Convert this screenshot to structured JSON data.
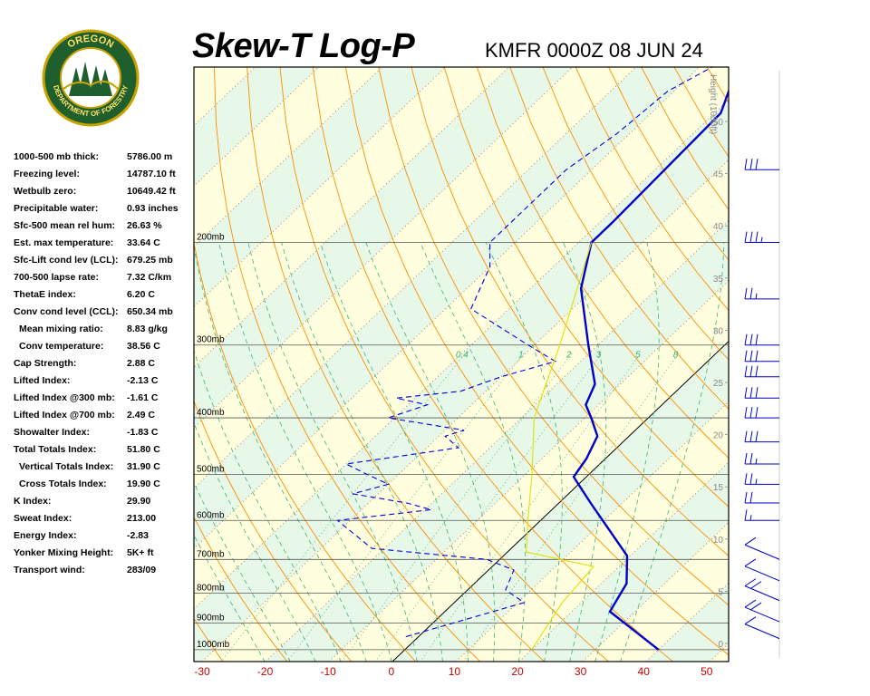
{
  "header": {
    "title": "Skew-T Log-P",
    "station_time": "KMFR 0000Z 08 JUN 24",
    "logo_top_text": "OREGON",
    "logo_bottom_text": "DEPARTMENT OF FORESTRY"
  },
  "indices": [
    {
      "label": "1000-500 mb thick:",
      "value": "5786.00 m",
      "indent": false
    },
    {
      "label": "Freezing level:",
      "value": "14787.10 ft",
      "indent": false
    },
    {
      "label": "Wetbulb zero:",
      "value": "10649.42 ft",
      "indent": false
    },
    {
      "label": "Precipitable water:",
      "value": "0.93 inches",
      "indent": false
    },
    {
      "label": "Sfc-500 mean rel hum:",
      "value": "26.63 %",
      "indent": false
    },
    {
      "label": "Est. max temperature:",
      "value": "33.64 C",
      "indent": false
    },
    {
      "label": "Sfc-Lift cond lev (LCL):",
      "value": "679.25 mb",
      "indent": false
    },
    {
      "label": "700-500 lapse rate:",
      "value": "7.32 C/km",
      "indent": false
    },
    {
      "label": "ThetaE index:",
      "value": "6.20 C",
      "indent": false
    },
    {
      "label": "Conv cond level (CCL):",
      "value": "650.34 mb",
      "indent": false
    },
    {
      "label": "Mean mixing ratio:",
      "value": "8.83 g/kg",
      "indent": true
    },
    {
      "label": "Conv temperature:",
      "value": "38.56 C",
      "indent": true
    },
    {
      "label": "Cap Strength:",
      "value": "2.88 C",
      "indent": false
    },
    {
      "label": "Lifted Index:",
      "value": "-2.13 C",
      "indent": false
    },
    {
      "label": "Lifted Index @300 mb:",
      "value": "-1.61 C",
      "indent": false
    },
    {
      "label": "Lifted Index @700 mb:",
      "value": "2.49 C",
      "indent": false
    },
    {
      "label": "Showalter Index:",
      "value": "-1.83 C",
      "indent": false
    },
    {
      "label": "Total Totals Index:",
      "value": "51.80 C",
      "indent": false
    },
    {
      "label": "Vertical Totals Index:",
      "value": "31.90 C",
      "indent": true
    },
    {
      "label": "Cross Totals Index:",
      "value": "19.90 C",
      "indent": true
    },
    {
      "label": "K Index:",
      "value": "29.90",
      "indent": false
    },
    {
      "label": "Sweat Index:",
      "value": "213.00",
      "indent": false
    },
    {
      "label": "Energy Index:",
      "value": "-2.83",
      "indent": false
    },
    {
      "label": "Yonker Mixing Height:",
      "value": "5K+ ft",
      "indent": false
    },
    {
      "label": "Transport wind:",
      "value": "283/09",
      "indent": false
    }
  ],
  "chart_data": {
    "type": "line",
    "title": "Skew-T Log-P",
    "subtitle": "KMFR 0000Z 08 JUN 24",
    "xlabel": "",
    "ylabel": "",
    "x_ticks": [
      -30,
      -20,
      -10,
      0,
      10,
      20,
      30,
      40,
      50
    ],
    "xlim": [
      -30,
      50
    ],
    "pressure_levels": [
      {
        "p": 200,
        "label": "200mb"
      },
      {
        "p": 300,
        "label": "300mb"
      },
      {
        "p": 400,
        "label": "400mb"
      },
      {
        "p": 500,
        "label": "500mb"
      },
      {
        "p": 600,
        "label": "600mb"
      },
      {
        "p": 700,
        "label": "700mb"
      },
      {
        "p": 800,
        "label": "800mb"
      },
      {
        "p": 900,
        "label": "900mb"
      },
      {
        "p": 1000,
        "label": "1000mb"
      }
    ],
    "height_axis": {
      "label": "Height (1000ft)",
      "ticks": [
        "0",
        "5",
        "10",
        "15",
        "20",
        "25",
        "30",
        "35",
        "40",
        "45",
        "50"
      ]
    },
    "mixing_ratio_labels": [
      "0.4",
      "1",
      "2",
      "3",
      "5",
      "8"
    ],
    "colors": {
      "temperature": "#0000cc",
      "dewpoint": "#0000dd",
      "parcel": "#e0e000",
      "dry_adiabat": "#ff8c00",
      "moist_adiabat": "#3cb371",
      "isotherm": "#996633",
      "zero_isotherm": "#000000",
      "x_tick_labels": "#cc0000",
      "band_yellow": "#ffffe0",
      "band_green": "#e8f8e8"
    },
    "series": [
      {
        "type": "temperature",
        "points": [
          [
            1000,
            40
          ],
          [
            860,
            26
          ],
          [
            770,
            24
          ],
          [
            690,
            19.5
          ],
          [
            560,
            5
          ],
          [
            505,
            -2
          ],
          [
            470,
            -3
          ],
          [
            430,
            -5
          ],
          [
            400,
            -9
          ],
          [
            380,
            -12
          ],
          [
            350,
            -14
          ],
          [
            300,
            -21.5
          ],
          [
            240,
            -32
          ],
          [
            200,
            -38
          ],
          [
            185,
            -38
          ],
          [
            120,
            -39
          ],
          [
            100,
            -44
          ]
        ]
      },
      {
        "type": "dewpoint",
        "points": [
          [
            950,
            -2
          ],
          [
            830,
            11
          ],
          [
            790,
            6
          ],
          [
            730,
            4
          ],
          [
            700,
            -2
          ],
          [
            670,
            -22
          ],
          [
            600,
            -32
          ],
          [
            575,
            -19
          ],
          [
            560,
            -24
          ],
          [
            540,
            -34
          ],
          [
            520,
            -30
          ],
          [
            500,
            -35
          ],
          [
            480,
            -40
          ],
          [
            450,
            -25
          ],
          [
            430,
            -29
          ],
          [
            420,
            -27
          ],
          [
            400,
            -41
          ],
          [
            380,
            -37
          ],
          [
            370,
            -43
          ],
          [
            360,
            -34
          ],
          [
            340,
            -30
          ],
          [
            320,
            -24
          ],
          [
            300,
            -31
          ],
          [
            260,
            -46
          ],
          [
            220,
            -50
          ],
          [
            200,
            -54
          ],
          [
            150,
            -54
          ],
          [
            130,
            -52
          ],
          [
            110,
            -51
          ],
          [
            100,
            -48
          ]
        ]
      },
      {
        "type": "parcel",
        "points": [
          [
            1000,
            20
          ],
          [
            830,
            17
          ],
          [
            720,
            16
          ],
          [
            680,
            3
          ],
          [
            600,
            -2
          ],
          [
            500,
            -9
          ],
          [
            400,
            -18
          ],
          [
            300,
            -26
          ],
          [
            200,
            -38
          ]
        ]
      }
    ],
    "wind_barbs": [
      {
        "p": 930,
        "speed_kt": 5
      },
      {
        "p": 870,
        "speed_kt": 10
      },
      {
        "p": 800,
        "speed_kt": 10
      },
      {
        "p": 740,
        "speed_kt": 5
      },
      {
        "p": 680,
        "speed_kt": 5
      },
      {
        "p": 600,
        "speed_kt": 15
      },
      {
        "p": 560,
        "speed_kt": 20
      },
      {
        "p": 520,
        "speed_kt": 25
      },
      {
        "p": 480,
        "speed_kt": 25
      },
      {
        "p": 440,
        "speed_kt": 30
      },
      {
        "p": 400,
        "speed_kt": 30
      },
      {
        "p": 370,
        "speed_kt": 30
      },
      {
        "p": 340,
        "speed_kt": 30
      },
      {
        "p": 320,
        "speed_kt": 30
      },
      {
        "p": 300,
        "speed_kt": 30
      },
      {
        "p": 250,
        "speed_kt": 25
      },
      {
        "p": 200,
        "speed_kt": 35
      },
      {
        "p": 150,
        "speed_kt": 30
      }
    ]
  }
}
